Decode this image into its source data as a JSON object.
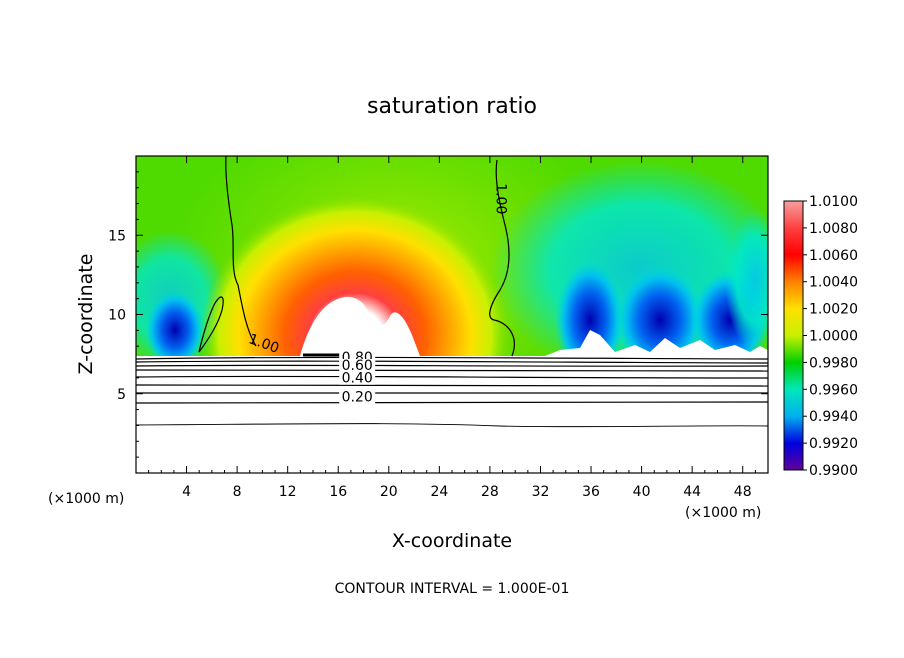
{
  "chart_data": {
    "type": "heatmap",
    "title": "saturation ratio",
    "xlabel": "X-coordinate",
    "ylabel": "Z-coordinate",
    "x_unit": "(×1000 m)",
    "footer": "CONTOUR INTERVAL = 1.000E-01",
    "xlim": [
      0,
      50
    ],
    "ylim": [
      0,
      20
    ],
    "x_ticks": [
      4,
      8,
      12,
      16,
      20,
      24,
      28,
      32,
      36,
      40,
      44,
      48
    ],
    "y_ticks": [
      5,
      10,
      15
    ],
    "colorbar": {
      "min": 0.99,
      "max": 1.01,
      "tick_labels": [
        "1.0100",
        "1.0080",
        "1.0060",
        "1.0040",
        "1.0020",
        "1.0000",
        "0.9980",
        "0.9960",
        "0.9940",
        "0.9920",
        "0.9900"
      ],
      "colors": [
        "#f5a0a0",
        "#ff4040",
        "#ff0000",
        "#ff8000",
        "#ffe000",
        "#c8f000",
        "#00d000",
        "#00e8b8",
        "#00b0f0",
        "#0000e0",
        "#60009a"
      ]
    },
    "contour_labels": [
      {
        "text": "1.00",
        "x": 10,
        "z": 7.9
      },
      {
        "text": "1.00",
        "x": 28.5,
        "z": 17.3
      },
      {
        "text": "0.80",
        "x": 17.5,
        "z": 7.0
      },
      {
        "text": "0.60",
        "x": 17.5,
        "z": 6.5
      },
      {
        "text": "0.40",
        "x": 17.5,
        "z": 5.7
      },
      {
        "text": "0.20",
        "x": 17.5,
        "z": 4.5
      }
    ]
  }
}
